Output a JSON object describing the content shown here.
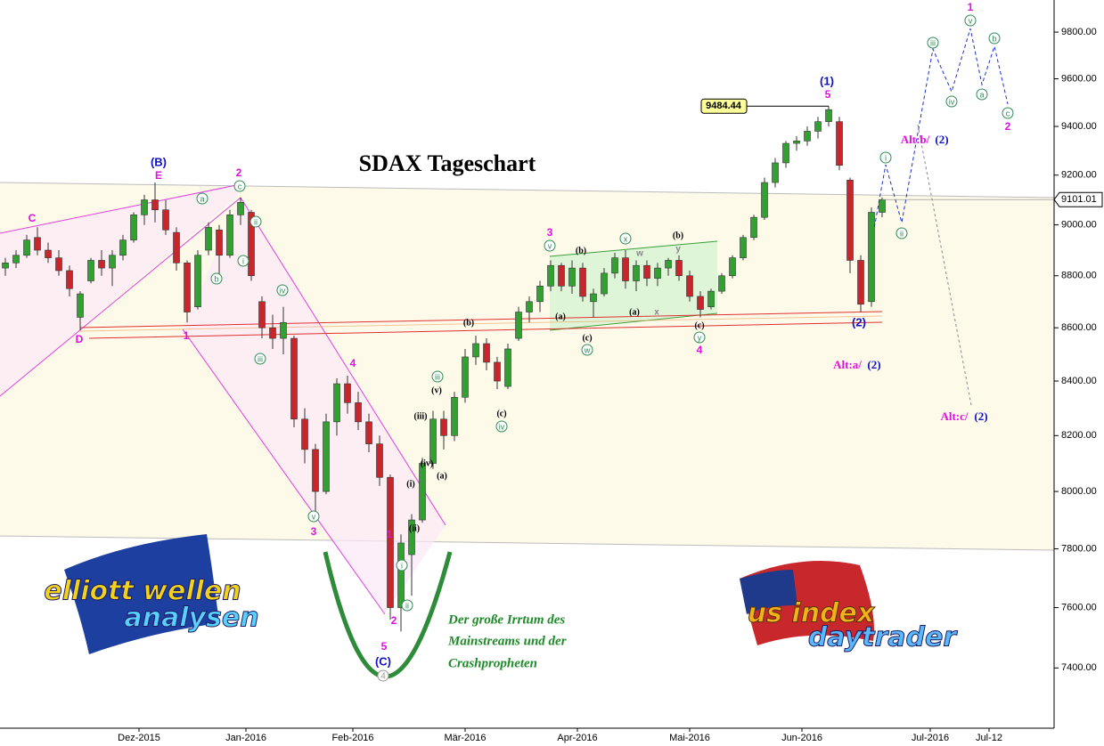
{
  "chart_data": {
    "type": "candlestick",
    "title": "SDAX Tageschart",
    "log_scale": true,
    "up_color": "#34a034",
    "down_color": "#c8262c",
    "x": [
      0,
      2,
      4,
      6,
      8,
      10,
      12,
      14,
      16,
      18,
      20,
      22,
      24,
      26,
      28,
      30,
      32,
      34,
      36,
      38,
      40,
      42,
      44,
      46,
      48,
      50,
      52,
      54,
      56,
      58,
      60,
      62,
      64,
      66,
      68,
      70,
      72,
      74,
      76,
      78,
      80,
      82,
      84,
      86,
      88,
      90,
      92,
      94,
      96,
      98,
      100,
      102,
      104,
      106,
      108,
      110,
      112,
      114,
      116,
      118,
      120,
      122,
      124,
      126,
      128,
      130,
      132,
      134,
      136,
      138,
      140,
      142,
      144,
      146,
      148,
      150,
      152,
      154,
      156,
      158,
      160,
      162,
      164
    ],
    "open": [
      8830,
      8850,
      8880,
      8950,
      8900,
      8870,
      8820,
      8640,
      8780,
      8860,
      8830,
      8880,
      8940,
      9040,
      9100,
      9060,
      8970,
      8850,
      8680,
      8900,
      8980,
      8880,
      9040,
      9050,
      8700,
      8600,
      8560,
      8560,
      8260,
      8150,
      8000,
      8250,
      8390,
      8320,
      8250,
      8170,
      8050,
      7600,
      7780,
      7900,
      8100,
      8260,
      8200,
      8340,
      8490,
      8540,
      8470,
      8380,
      8560,
      8660,
      8700,
      8760,
      8840,
      8760,
      8830,
      8700,
      8730,
      8810,
      8870,
      8780,
      8840,
      8790,
      8830,
      8860,
      8800,
      8720,
      8680,
      8740,
      8800,
      8870,
      8950,
      9030,
      9170,
      9250,
      9330,
      9340,
      9380,
      9420,
      9420,
      9180,
      8860,
      8700,
      9050
    ],
    "high": [
      8870,
      8900,
      8960,
      8990,
      8930,
      8900,
      8840,
      8740,
      8870,
      8900,
      8900,
      8960,
      9050,
      9120,
      9170,
      9100,
      8990,
      8860,
      8900,
      9010,
      9000,
      9060,
      9110,
      9060,
      8720,
      8650,
      8680,
      8570,
      8300,
      8170,
      8280,
      8410,
      8420,
      8360,
      8280,
      8200,
      8060,
      7850,
      7920,
      8120,
      8290,
      8290,
      8360,
      8520,
      8570,
      8560,
      8490,
      8540,
      8680,
      8720,
      8780,
      8860,
      8850,
      8860,
      8850,
      8750,
      8830,
      8890,
      8900,
      8860,
      8860,
      8850,
      8870,
      8880,
      8820,
      8740,
      8750,
      8810,
      8880,
      8960,
      9040,
      9190,
      9270,
      9340,
      9360,
      9400,
      9440,
      9484.44,
      9440,
      9190,
      8880,
      9070,
      9110
    ],
    "low": [
      8800,
      8830,
      8870,
      8880,
      8850,
      8800,
      8720,
      8590,
      8770,
      8800,
      8760,
      8860,
      8930,
      9000,
      9010,
      8960,
      8820,
      8620,
      8670,
      8880,
      8800,
      8870,
      9000,
      8780,
      8560,
      8520,
      8500,
      8230,
      8100,
      7930,
      7990,
      8200,
      8280,
      8220,
      8140,
      8020,
      7560,
      7520,
      7640,
      7890,
      8080,
      8150,
      8180,
      8320,
      8460,
      8440,
      8370,
      8370,
      8550,
      8620,
      8660,
      8740,
      8740,
      8730,
      8700,
      8640,
      8720,
      8790,
      8750,
      8740,
      8760,
      8760,
      8800,
      8780,
      8700,
      8640,
      8670,
      8730,
      8790,
      8860,
      8940,
      9020,
      9150,
      9230,
      9300,
      9320,
      9350,
      9400,
      9220,
      8810,
      8660,
      8680,
      9030
    ],
    "close": [
      8850,
      8880,
      8940,
      8900,
      8870,
      8820,
      8750,
      8730,
      8860,
      8830,
      8880,
      8940,
      9040,
      9100,
      9060,
      8980,
      8850,
      8660,
      8880,
      8990,
      8880,
      9040,
      9090,
      8800,
      8600,
      8560,
      8620,
      8260,
      8150,
      8000,
      8250,
      8390,
      8320,
      8250,
      8170,
      8050,
      7600,
      7820,
      7900,
      8100,
      8260,
      8200,
      8340,
      8490,
      8540,
      8470,
      8400,
      8520,
      8660,
      8700,
      8760,
      8840,
      8760,
      8830,
      8720,
      8730,
      8810,
      8870,
      8780,
      8840,
      8790,
      8830,
      8860,
      8800,
      8720,
      8670,
      8740,
      8800,
      8870,
      8950,
      9030,
      9170,
      9250,
      9330,
      9340,
      9380,
      9420,
      9470,
      9240,
      8860,
      8690,
      9050,
      9101.01
    ],
    "xlim": [
      -1,
      196
    ],
    "xticks": [
      {
        "value": 25,
        "label": "Dez-2015"
      },
      {
        "value": 45,
        "label": "Jan-2016"
      },
      {
        "value": 65,
        "label": "Feb-2016"
      },
      {
        "value": 86,
        "label": "Mär-2016"
      },
      {
        "value": 107,
        "label": "Apr-2016"
      },
      {
        "value": 128,
        "label": "Mai-2016"
      },
      {
        "value": 149,
        "label": "Jun-2016"
      },
      {
        "value": 173,
        "label": "Jul-2016"
      },
      {
        "value": 184,
        "label": "Jul-12"
      }
    ],
    "ylim": [
      7200,
      9940
    ],
    "yticks": [
      {
        "value": 7400,
        "label": "7400.00"
      },
      {
        "value": 7600,
        "label": "7600.00"
      },
      {
        "value": 7800,
        "label": "7800.00"
      },
      {
        "value": 8000,
        "label": "8000.00"
      },
      {
        "value": 8200,
        "label": "8200.00"
      },
      {
        "value": 8400,
        "label": "8400.00"
      },
      {
        "value": 8600,
        "label": "8600.00"
      },
      {
        "value": 8800,
        "label": "8800.00"
      },
      {
        "value": 9000,
        "label": "9000.00"
      },
      {
        "value": 9200,
        "label": "9200.00"
      },
      {
        "value": 9400,
        "label": "9400.00"
      },
      {
        "value": 9600,
        "label": "9600.00"
      },
      {
        "value": 9800,
        "label": "9800.00"
      }
    ],
    "last_price": 9101.01,
    "high_label": 9484.44,
    "annotations": [
      "C",
      "D",
      "E",
      "(B)",
      "2",
      "1",
      "3",
      "4",
      "1",
      "2",
      "5",
      "(C)",
      "3",
      "4",
      "5",
      "(1)",
      "(2)",
      "1",
      "2",
      "Alt:a/",
      "(2)",
      "Alt:b/",
      "(2)",
      "Alt:c/",
      "(2)",
      "(b)",
      "(v)",
      "(iii)",
      "(iv)",
      "(a)",
      "(c)",
      "(i)",
      "(ii)",
      "(b)",
      "(a)",
      "(c)",
      "(a)",
      "(b)",
      "(c)",
      "w",
      "y",
      "x",
      "a",
      "c",
      "ii",
      "i",
      "b",
      "iv",
      "iii",
      "v",
      "i",
      "ii",
      "iii",
      "iv",
      "v",
      "w",
      "x",
      "y",
      "i",
      "ii",
      "iii",
      "iv",
      "v",
      "a",
      "b",
      "c",
      "4"
    ],
    "comment": [
      "Der große Irrtum des",
      "Mainstreams und der",
      "Crashpropheten"
    ],
    "logos": [
      "elliott wellen",
      "analysen",
      "us index",
      "daytrader"
    ]
  }
}
